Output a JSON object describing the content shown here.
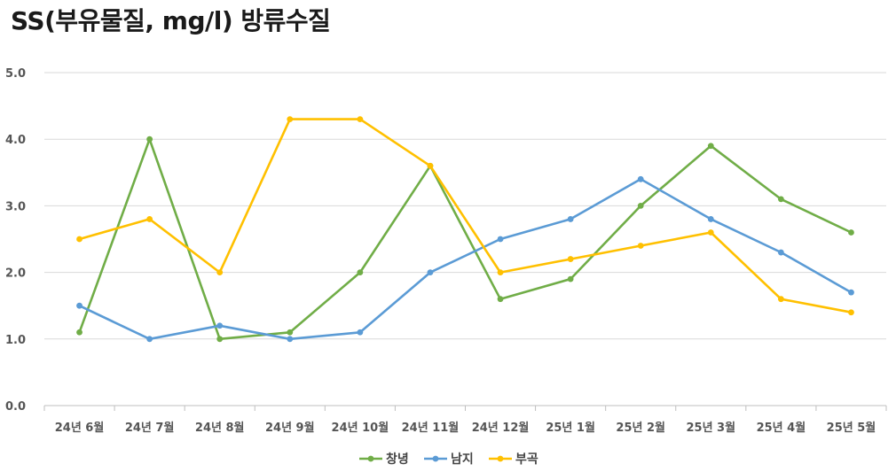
{
  "chart_data": {
    "type": "line",
    "title": "SS(부유물질, mg/l) 방류수질",
    "xlabel": "",
    "ylabel": "",
    "ylim": [
      0,
      5
    ],
    "yticks": [
      "0.0",
      "1.0",
      "2.0",
      "3.0",
      "4.0",
      "5.0"
    ],
    "grid": true,
    "legend_position": "bottom",
    "categories": [
      "24년 6월",
      "24년 7월",
      "24년 8월",
      "24년 9월",
      "24년 10월",
      "24년 11월",
      "24년 12월",
      "25년 1월",
      "25년 2월",
      "25년 3월",
      "25년 4월",
      "25년 5월"
    ],
    "series": [
      {
        "name": "창녕",
        "color": "#70ad47",
        "values": [
          1.1,
          4.0,
          1.0,
          1.1,
          2.0,
          3.6,
          1.6,
          1.9,
          3.0,
          3.9,
          3.1,
          2.6
        ]
      },
      {
        "name": "남지",
        "color": "#5b9bd5",
        "values": [
          1.5,
          1.0,
          1.2,
          1.0,
          1.1,
          2.0,
          2.5,
          2.8,
          3.4,
          2.8,
          2.3,
          1.7
        ]
      },
      {
        "name": "부곡",
        "color": "#ffc000",
        "values": [
          2.5,
          2.8,
          2.0,
          4.3,
          4.3,
          3.6,
          2.0,
          2.2,
          2.4,
          2.6,
          1.6,
          1.4
        ]
      }
    ]
  }
}
